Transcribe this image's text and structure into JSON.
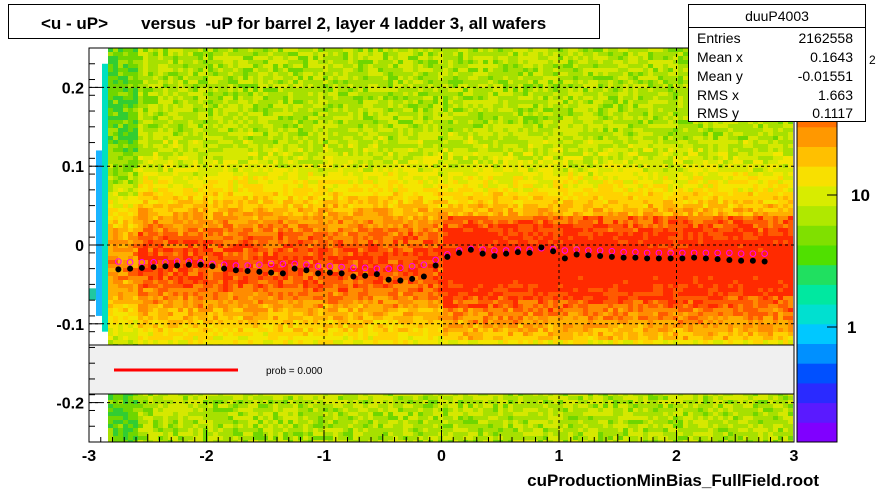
{
  "title": "<u - uP>       versus  -uP for barrel 2, layer 4 ladder 3, all wafers",
  "footer": "cuProductionMinBias_FullField.root",
  "stats": {
    "name": "duuP4003",
    "rows": [
      {
        "label": "Entries",
        "value": "2162558"
      },
      {
        "label": "Mean x",
        "value": "0.1643"
      },
      {
        "label": "Mean y",
        "value": "-0.01551"
      },
      {
        "label": "RMS x",
        "value": "1.663"
      },
      {
        "label": "RMS y",
        "value": "0.1117"
      }
    ]
  },
  "legend": {
    "fit_text": "prob = 0.000",
    "line_color": "#ff0000"
  },
  "colorbar": {
    "labels": [
      "10",
      "1"
    ],
    "exponent_label": "2"
  },
  "chart_data": {
    "type": "scatter",
    "xlim": [
      -3,
      3
    ],
    "ylim": [
      -0.25,
      0.25
    ],
    "x_ticks": [
      -3,
      -2,
      -1,
      0,
      1,
      2,
      3
    ],
    "x_tick_labels": [
      "-3",
      "-2",
      "-1",
      "0",
      "1",
      "2",
      "3"
    ],
    "y_ticks": [
      -0.2,
      -0.1,
      0,
      0.1,
      0.2
    ],
    "y_tick_labels": [
      "-0.2",
      "-0.1",
      "0",
      "0.1",
      "0.2"
    ],
    "grid": true,
    "series": [
      {
        "marker": "filled-circle",
        "color": "#000000",
        "x": [
          -2.75,
          -2.65,
          -2.55,
          -2.45,
          -2.35,
          -2.25,
          -2.15,
          -2.05,
          -1.95,
          -1.85,
          -1.75,
          -1.65,
          -1.55,
          -1.45,
          -1.35,
          -1.25,
          -1.15,
          -1.05,
          -0.95,
          -0.85,
          -0.75,
          -0.65,
          -0.55,
          -0.45,
          -0.35,
          -0.25,
          -0.15,
          -0.05,
          0.05,
          0.15,
          0.25,
          0.35,
          0.45,
          0.55,
          0.65,
          0.75,
          0.85,
          0.95,
          1.05,
          1.15,
          1.25,
          1.35,
          1.45,
          1.55,
          1.65,
          1.75,
          1.85,
          1.95,
          2.05,
          2.15,
          2.25,
          2.35,
          2.45,
          2.55,
          2.65,
          2.75
        ],
        "y": [
          -0.031,
          -0.03,
          -0.029,
          -0.028,
          -0.027,
          -0.026,
          -0.025,
          -0.025,
          -0.027,
          -0.03,
          -0.032,
          -0.033,
          -0.034,
          -0.035,
          -0.036,
          -0.03,
          -0.032,
          -0.036,
          -0.035,
          -0.036,
          -0.04,
          -0.039,
          -0.037,
          -0.044,
          -0.045,
          -0.043,
          -0.04,
          -0.026,
          -0.015,
          -0.01,
          -0.006,
          -0.011,
          -0.014,
          -0.011,
          -0.009,
          -0.01,
          -0.003,
          -0.008,
          -0.017,
          -0.012,
          -0.013,
          -0.014,
          -0.015,
          -0.016,
          -0.016,
          -0.017,
          -0.017,
          -0.017,
          -0.017,
          -0.016,
          -0.017,
          -0.018,
          -0.019,
          -0.02,
          -0.02,
          -0.021
        ]
      },
      {
        "marker": "open-circle",
        "color": "#ff00ff",
        "x": [
          -2.75,
          -2.65,
          -2.55,
          -2.45,
          -2.35,
          -2.25,
          -2.15,
          -2.05,
          -1.95,
          -1.85,
          -1.75,
          -1.65,
          -1.55,
          -1.45,
          -1.35,
          -1.25,
          -1.15,
          -1.05,
          -0.95,
          -0.85,
          -0.75,
          -0.65,
          -0.55,
          -0.45,
          -0.35,
          -0.25,
          -0.15,
          -0.05,
          0.05,
          0.15,
          0.25,
          0.35,
          0.45,
          0.55,
          0.65,
          0.75,
          0.85,
          0.95,
          1.05,
          1.15,
          1.25,
          1.35,
          1.45,
          1.55,
          1.65,
          1.75,
          1.85,
          1.95,
          2.05,
          2.15,
          2.25,
          2.35,
          2.45,
          2.55,
          2.65,
          2.75
        ],
        "y": [
          -0.021,
          -0.022,
          -0.022,
          -0.022,
          -0.022,
          -0.021,
          -0.021,
          -0.022,
          -0.024,
          -0.025,
          -0.026,
          -0.026,
          -0.025,
          -0.024,
          -0.024,
          -0.024,
          -0.025,
          -0.027,
          -0.027,
          -0.028,
          -0.029,
          -0.029,
          -0.03,
          -0.03,
          -0.029,
          -0.027,
          -0.025,
          -0.019,
          -0.012,
          -0.007,
          -0.005,
          -0.006,
          -0.007,
          -0.007,
          -0.006,
          -0.006,
          -0.004,
          -0.005,
          -0.007,
          -0.006,
          -0.007,
          -0.007,
          -0.008,
          -0.009,
          -0.009,
          -0.01,
          -0.01,
          -0.01,
          -0.01,
          -0.01,
          -0.01,
          -0.01,
          -0.01,
          -0.011,
          -0.011,
          -0.011
        ]
      }
    ]
  }
}
